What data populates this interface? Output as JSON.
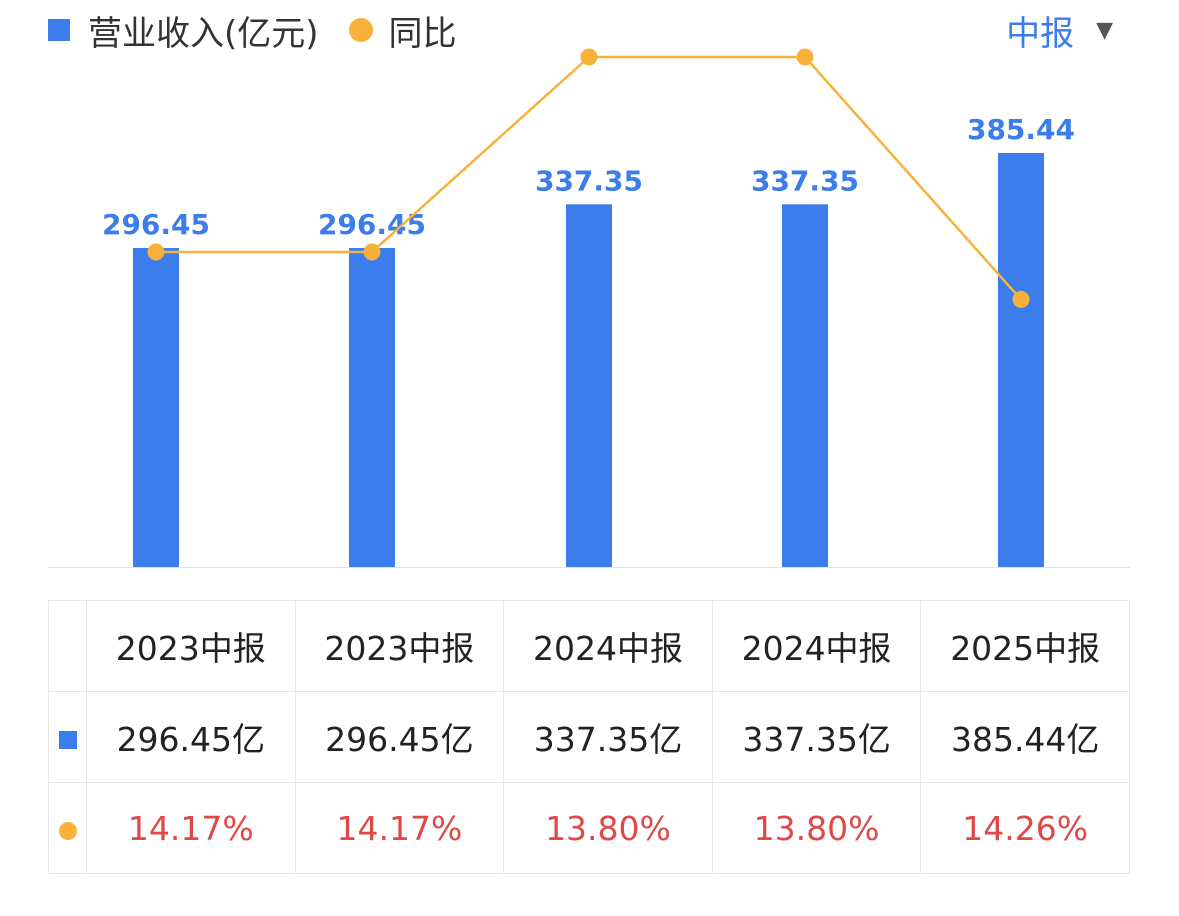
{
  "legend": {
    "revenue_label": "营业收入(亿元)",
    "yoy_label": "同比"
  },
  "period_select": {
    "label": "中报"
  },
  "colors": {
    "bar": "#3b7ded",
    "line": "#f9b13a",
    "pct_text": "#e04848"
  },
  "chart_data": {
    "type": "bar",
    "categories": [
      "2023中报",
      "2023中报",
      "2024中报",
      "2024中报",
      "2025中报"
    ],
    "series": [
      {
        "name": "营业收入(亿元)",
        "type": "bar",
        "values": [
          296.45,
          296.45,
          337.35,
          337.35,
          385.44
        ],
        "labels": [
          "296.45",
          "296.45",
          "337.35",
          "337.35",
          "385.44"
        ]
      },
      {
        "name": "同比",
        "type": "line",
        "values": [
          14.17,
          14.17,
          13.8,
          13.8,
          14.26
        ]
      }
    ]
  },
  "table": {
    "headers": [
      "2023中报",
      "2023中报",
      "2024中报",
      "2024中报",
      "2025中报"
    ],
    "revenue": [
      "296.45亿",
      "296.45亿",
      "337.35亿",
      "337.35亿",
      "385.44亿"
    ],
    "yoy": [
      "14.17%",
      "14.17%",
      "13.80%",
      "13.80%",
      "14.26%"
    ]
  }
}
